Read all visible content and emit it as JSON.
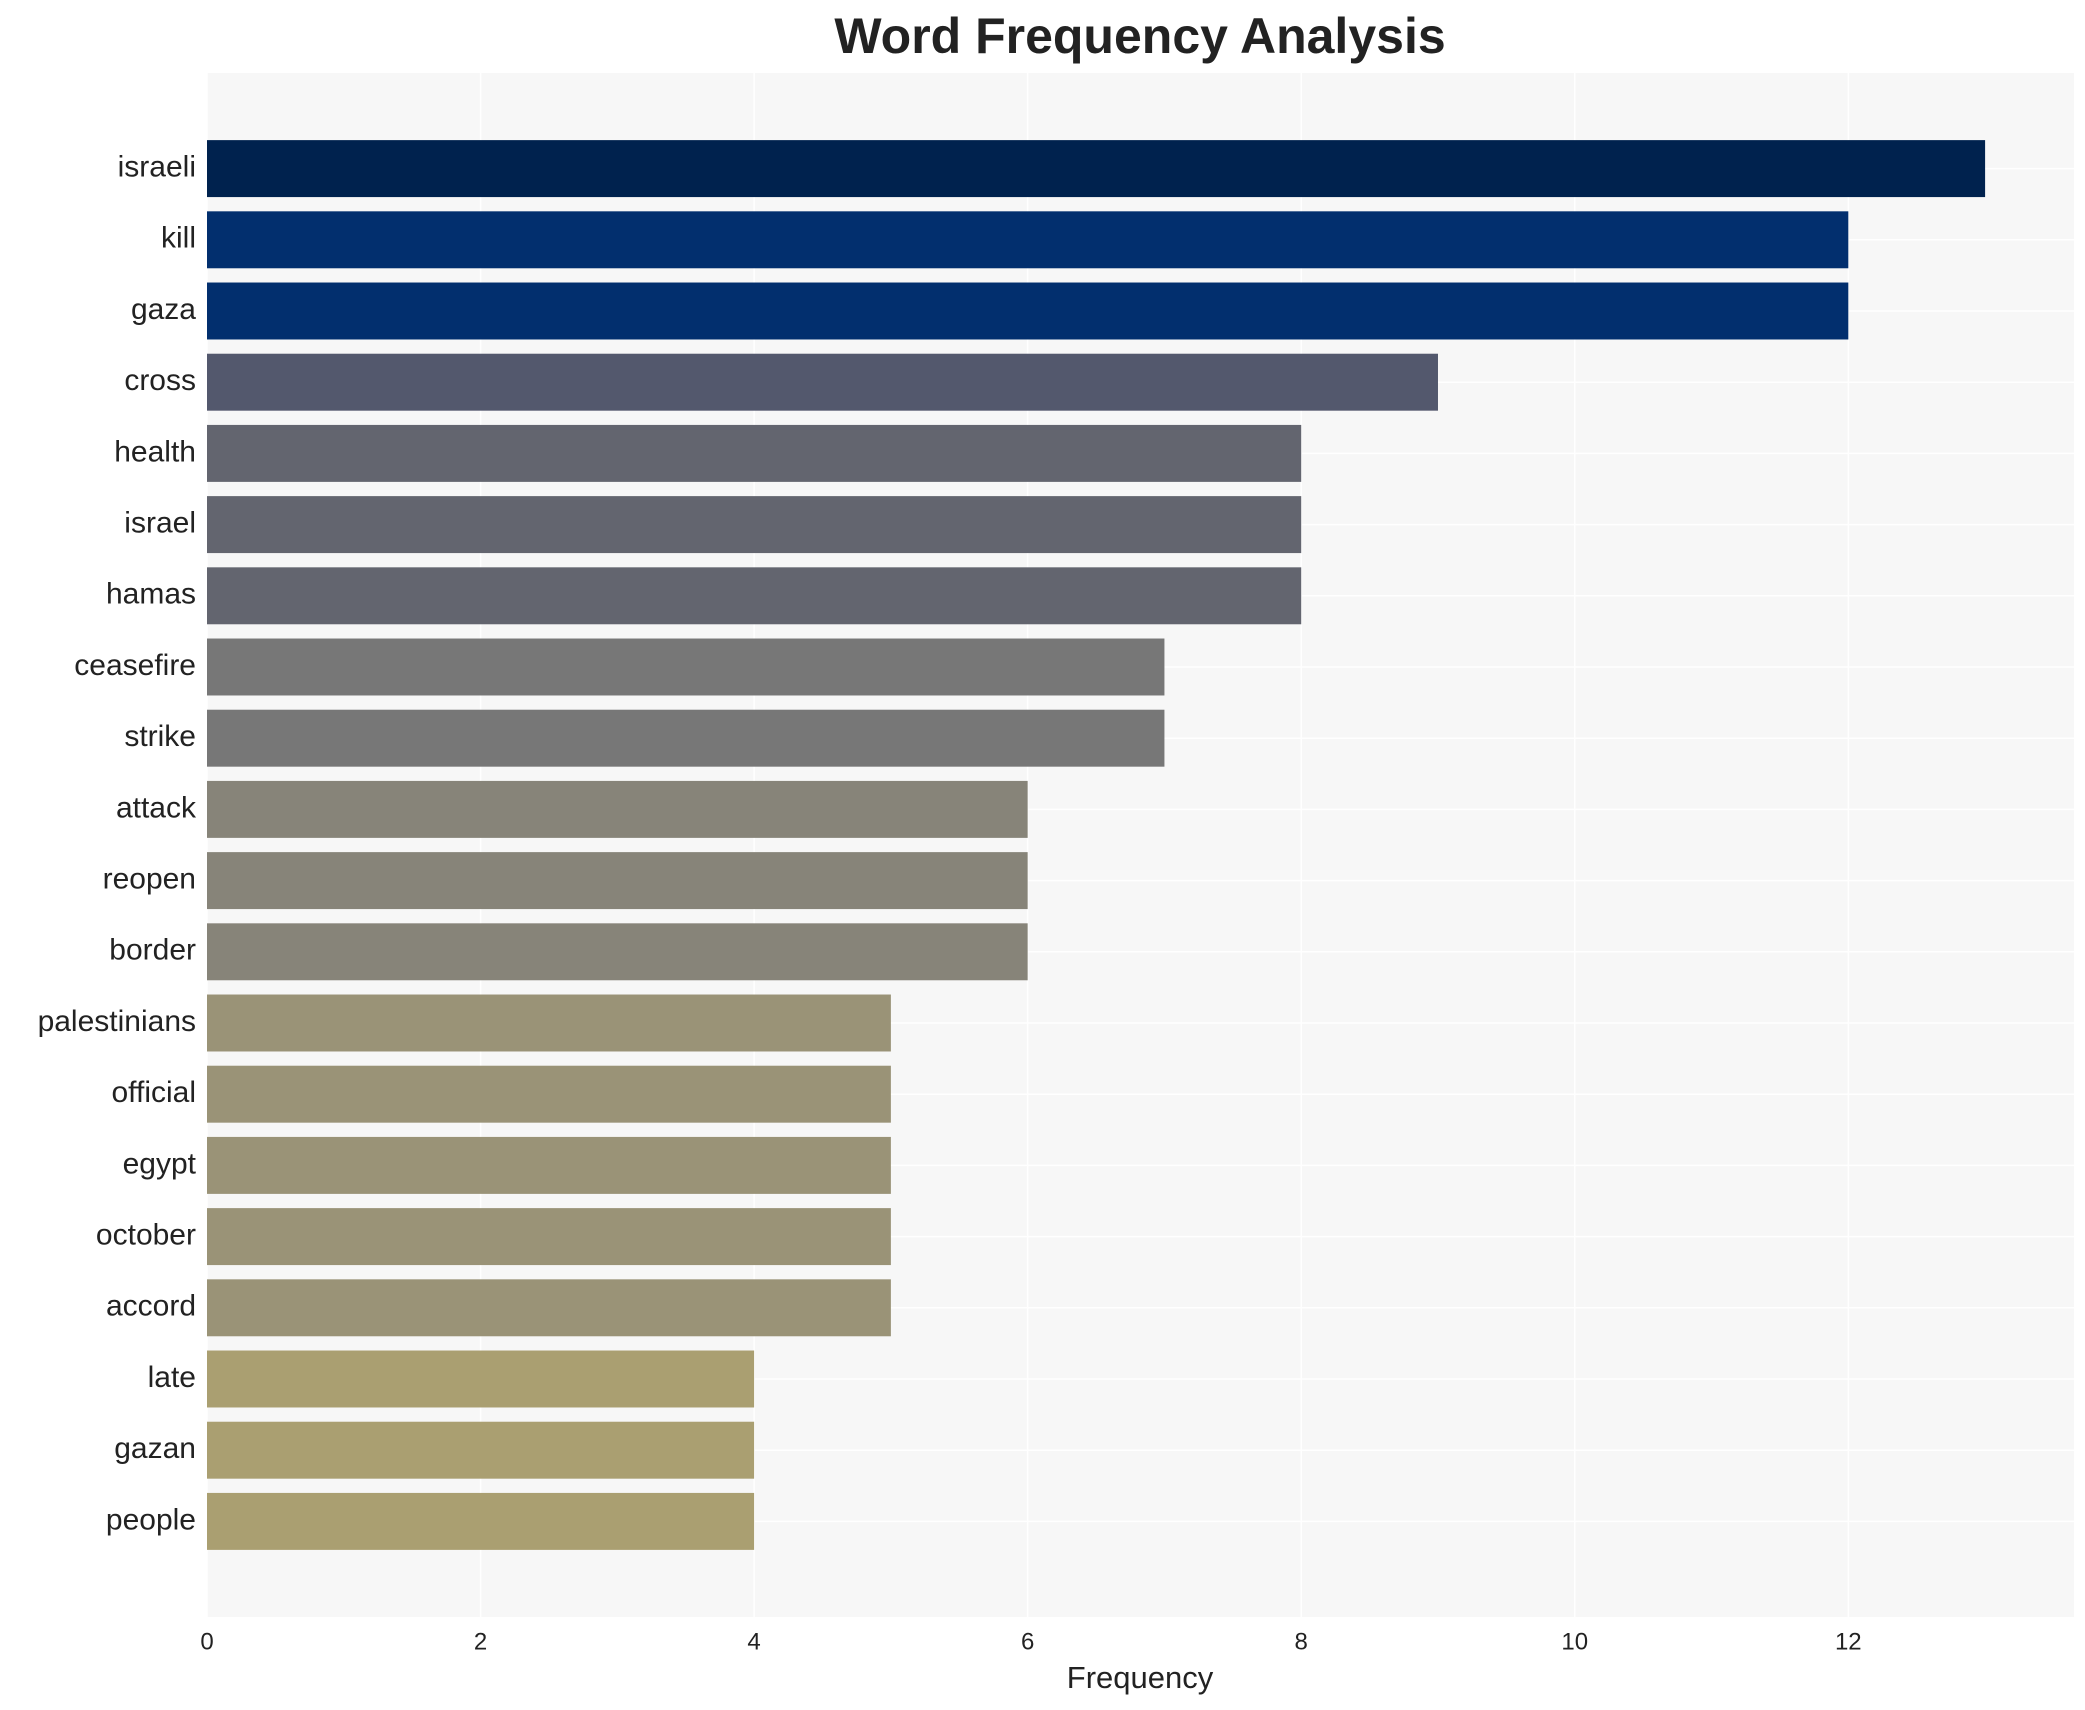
{
  "chart_data": {
    "type": "barh",
    "title": "Word Frequency Analysis",
    "x_label": "Frequency",
    "categories": [
      "israeli",
      "kill",
      "gaza",
      "cross",
      "health",
      "israel",
      "hamas",
      "ceasefire",
      "strike",
      "attack",
      "reopen",
      "border",
      "palestinians",
      "official",
      "egypt",
      "october",
      "accord",
      "late",
      "gazan",
      "people"
    ],
    "values": [
      13,
      12,
      12,
      9,
      8,
      8,
      8,
      7,
      7,
      6,
      6,
      6,
      5,
      5,
      5,
      5,
      5,
      4,
      4,
      4
    ],
    "colors": [
      "#00224e",
      "#022f6e",
      "#022f6e",
      "#53586d",
      "#63656f",
      "#63656f",
      "#63656f",
      "#777777",
      "#777777",
      "#878479",
      "#878479",
      "#878479",
      "#9a9377",
      "#9a9377",
      "#9a9377",
      "#9a9377",
      "#9a9377",
      "#aa9f71",
      "#aa9f71",
      "#aa9f71"
    ],
    "xlim": [
      0,
      13.65
    ],
    "xticks": [
      0,
      2,
      4,
      6,
      8,
      10,
      12
    ],
    "grid": true
  }
}
